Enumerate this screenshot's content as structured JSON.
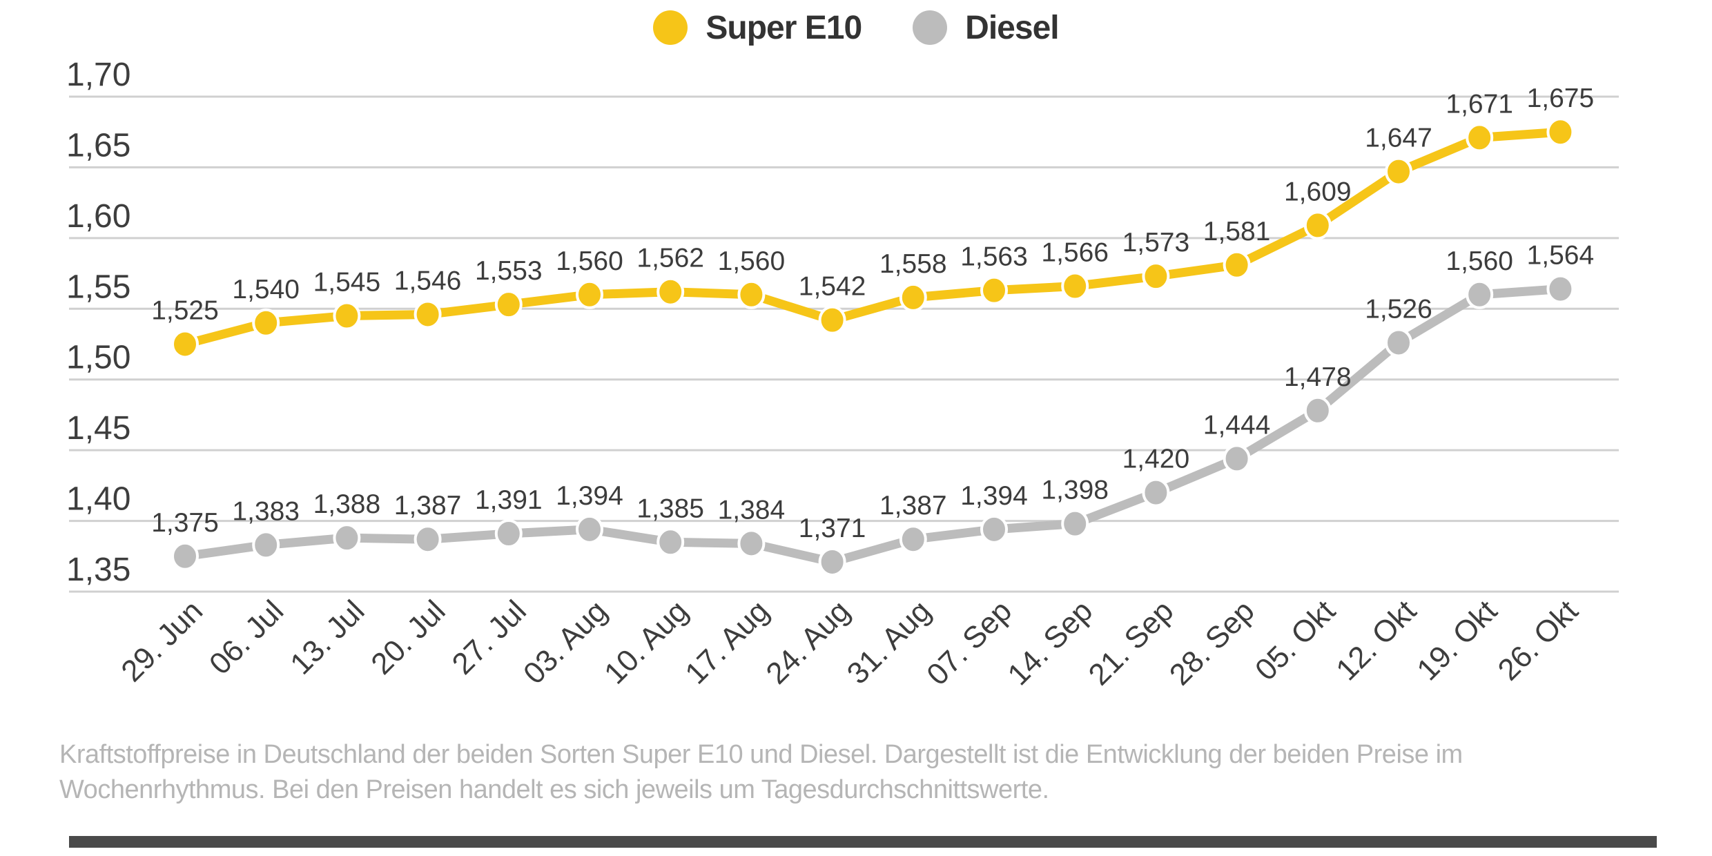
{
  "chart_data": {
    "type": "line",
    "title": "",
    "x": [
      "29. Jun",
      "06. Jul",
      "13. Jul",
      "20. Jul",
      "27. Jul",
      "03. Aug",
      "10. Aug",
      "17. Aug",
      "24. Aug",
      "31. Aug",
      "07. Sep",
      "14. Sep",
      "21. Sep",
      "28. Sep",
      "05. Okt",
      "12. Okt",
      "19. Okt",
      "26. Okt"
    ],
    "series": [
      {
        "name": "Super E10",
        "color": "#F6C518",
        "values": [
          1.525,
          1.54,
          1.545,
          1.546,
          1.553,
          1.56,
          1.562,
          1.56,
          1.542,
          1.558,
          1.563,
          1.566,
          1.573,
          1.581,
          1.609,
          1.647,
          1.671,
          1.675
        ]
      },
      {
        "name": "Diesel",
        "color": "#BCBCBC",
        "values": [
          1.375,
          1.383,
          1.388,
          1.387,
          1.391,
          1.394,
          1.385,
          1.384,
          1.371,
          1.387,
          1.394,
          1.398,
          1.42,
          1.444,
          1.478,
          1.526,
          1.56,
          1.564
        ]
      }
    ],
    "ylim": [
      1.35,
      1.7
    ],
    "yticks": [
      1.7,
      1.65,
      1.6,
      1.55,
      1.5,
      1.45,
      1.4,
      1.35
    ],
    "decimal_separator": ",",
    "grid": true,
    "legend_position": "top",
    "value_labels": true,
    "xlabel": "",
    "ylabel": ""
  },
  "caption": {
    "lines": [
      "Kraftstoffpreise in Deutschland der beiden Sorten Super E10 und Diesel. Dargestellt ist die Entwicklung der beiden Preise im",
      "Wochenrhythmus. Bei den Preisen handelt es sich jeweils um Tagesdurchschnittswerte."
    ]
  },
  "colors": {
    "grid": "#d0d0d0",
    "tick_text": "#3d3d3d",
    "value_label_text": "#3c3c3c",
    "caption_text": "#b5b5b5",
    "bottom_bar": "#4a4a4a"
  }
}
